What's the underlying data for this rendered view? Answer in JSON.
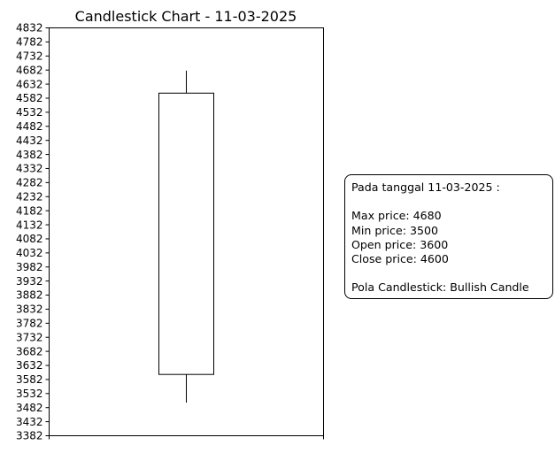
{
  "chart_data": {
    "type": "candlestick",
    "title": "Candlestick Chart - 11-03-2025",
    "xlabel": "",
    "ylabel": "",
    "ylim": [
      3382,
      4832
    ],
    "y_ticks": [
      "4832",
      "4782",
      "4732",
      "4682",
      "4632",
      "4582",
      "4532",
      "4482",
      "4432",
      "4382",
      "4332",
      "4282",
      "4232",
      "4182",
      "4132",
      "4082",
      "4032",
      "3982",
      "3932",
      "3882",
      "3832",
      "3782",
      "3732",
      "3682",
      "3632",
      "3582",
      "3532",
      "3482",
      "3432",
      "3382"
    ],
    "candles": [
      {
        "date": "11-03-2025",
        "open": 3600,
        "high": 4680,
        "low": 3500,
        "close": 4600
      }
    ],
    "grid": false
  },
  "info": {
    "date_line": "Pada tanggal 11-03-2025 :",
    "max_line": "Max price: 4680",
    "min_line": "Min price: 3500",
    "open_line": "Open price: 3600",
    "close_line": "Close price: 4600",
    "pattern_line": "Pola Candlestick: Bullish Candle"
  }
}
